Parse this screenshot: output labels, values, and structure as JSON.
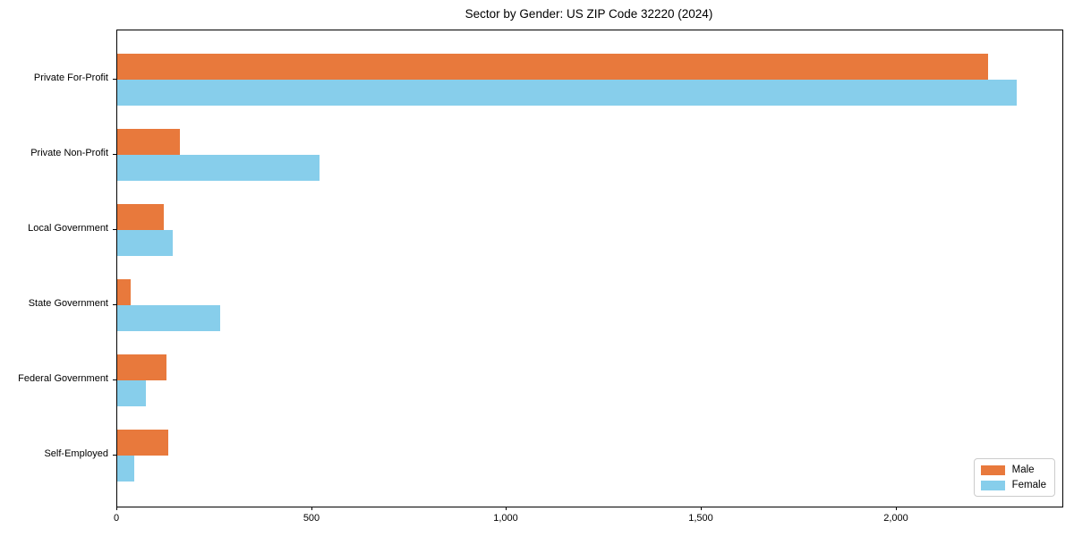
{
  "chart_data": {
    "type": "bar",
    "orientation": "horizontal",
    "title": "Sector by Gender: US ZIP Code 32220 (2024)",
    "categories": [
      "Private For-Profit",
      "Private Non-Profit",
      "Local Government",
      "State Government",
      "Federal Government",
      "Self-Employed"
    ],
    "series": [
      {
        "name": "Male",
        "color": "#E8793C",
        "values": [
          2234,
          160,
          120,
          34,
          126,
          132
        ]
      },
      {
        "name": "Female",
        "color": "#87CEEB",
        "values": [
          2308,
          520,
          143,
          265,
          74,
          44
        ]
      }
    ],
    "xlim": [
      0,
      2425
    ],
    "x_ticks": [
      {
        "value": 0,
        "label": "0"
      },
      {
        "value": 500,
        "label": "500"
      },
      {
        "value": 1000,
        "label": "1,000"
      },
      {
        "value": 1500,
        "label": "1,500"
      },
      {
        "value": 2000,
        "label": "2,000"
      }
    ],
    "grid": false,
    "legend_position": "lower right"
  }
}
